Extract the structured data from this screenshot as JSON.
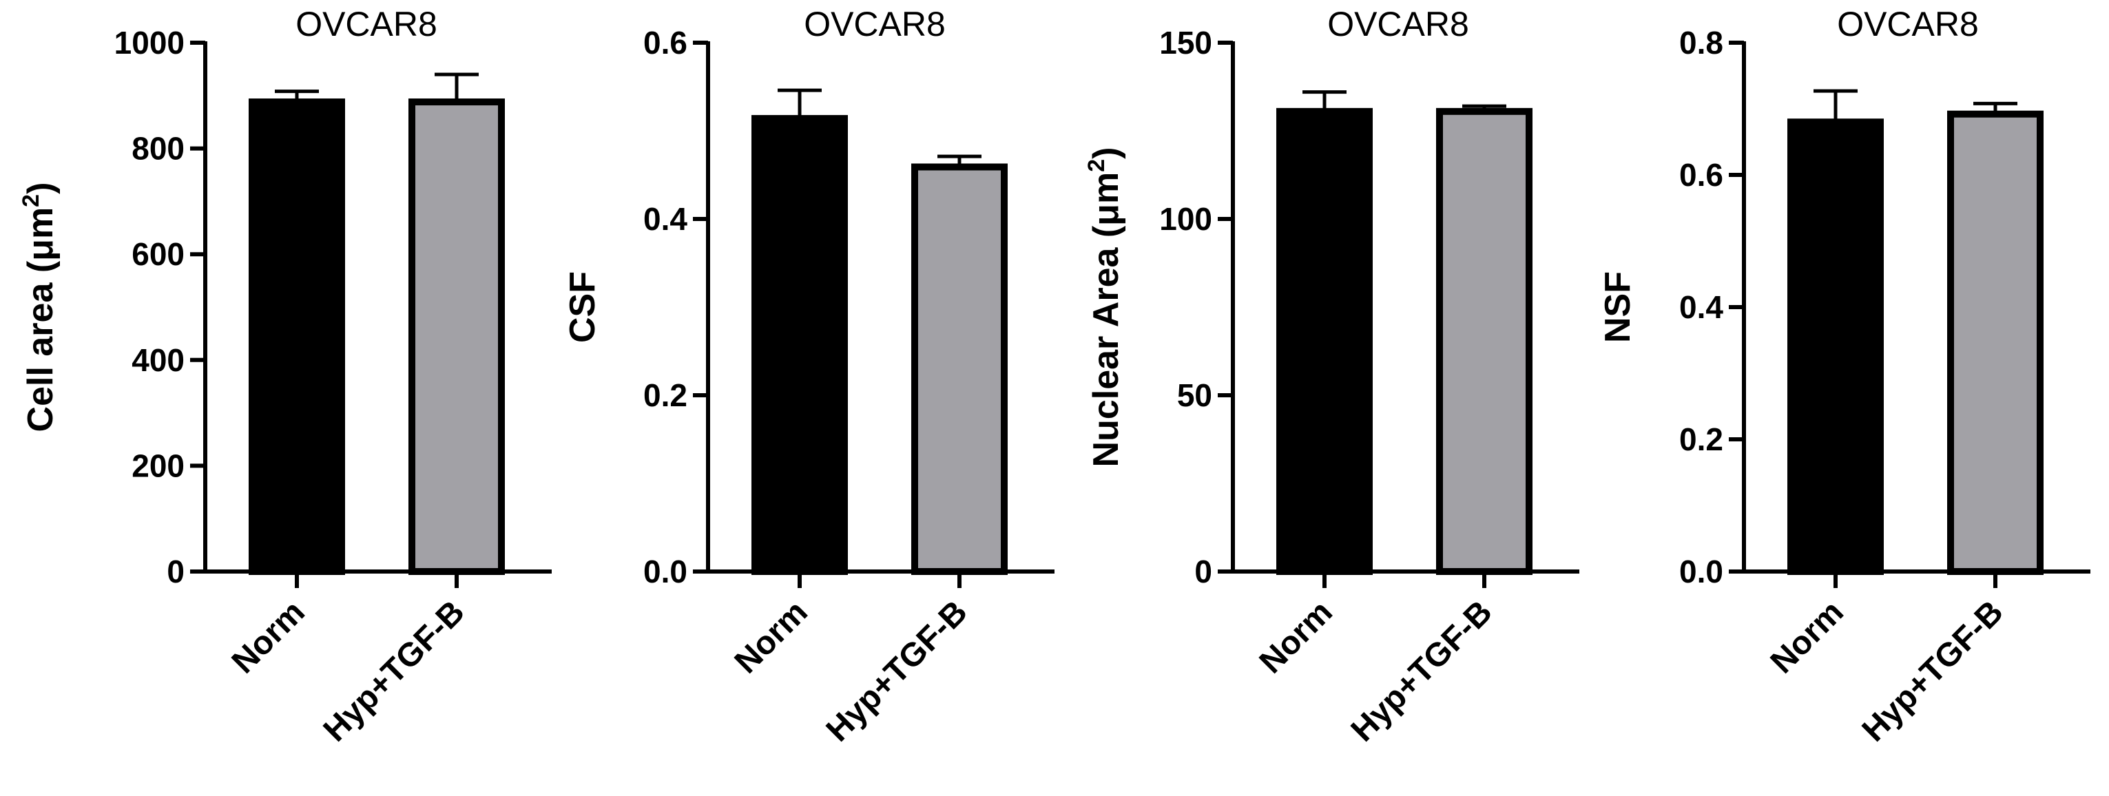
{
  "colors": {
    "norm": "#000000",
    "treated": "#a2a1a6",
    "axis": "#000000"
  },
  "chart_data": [
    {
      "type": "bar",
      "title": "OVCAR8",
      "ylabel": {
        "text": "Cell area (μm",
        "sup": "2",
        "close": ")"
      },
      "categories": [
        "Norm",
        "Hyp+TGF-B"
      ],
      "values": [
        888,
        888
      ],
      "errors": [
        20,
        52
      ],
      "ylim": [
        0,
        1000
      ],
      "yticks": [
        0,
        200,
        400,
        600,
        800,
        1000
      ],
      "yticklabels": [
        "0",
        "200",
        "400",
        "600",
        "800",
        "1000"
      ]
    },
    {
      "type": "bar",
      "title": "OVCAR8",
      "ylabel": {
        "text": "CSF",
        "sup": "",
        "close": ""
      },
      "categories": [
        "Norm",
        "Hyp+TGF-B"
      ],
      "values": [
        0.514,
        0.459
      ],
      "errors": [
        0.032,
        0.012
      ],
      "ylim": [
        0,
        0.6
      ],
      "yticks": [
        0,
        0.2,
        0.4,
        0.6
      ],
      "yticklabels": [
        "0.0",
        "0.2",
        "0.4",
        "0.6"
      ]
    },
    {
      "type": "bar",
      "title": "OVCAR8",
      "ylabel": {
        "text": "Nuclear Area (μm",
        "sup": "2",
        "close": ")"
      },
      "categories": [
        "Norm",
        "Hyp+TGF-B"
      ],
      "values": [
        130.5,
        130.5
      ],
      "errors": [
        5.5,
        1.5
      ],
      "ylim": [
        0,
        150
      ],
      "yticks": [
        0,
        50,
        100,
        150
      ],
      "yticklabels": [
        "0",
        "50",
        "100",
        "150"
      ]
    },
    {
      "type": "bar",
      "title": "OVCAR8",
      "ylabel": {
        "text": "NSF",
        "sup": "",
        "close": ""
      },
      "categories": [
        "Norm",
        "Hyp+TGF-B"
      ],
      "values": [
        0.68,
        0.692
      ],
      "errors": [
        0.047,
        0.016
      ],
      "ylim": [
        0,
        0.8
      ],
      "yticks": [
        0,
        0.2,
        0.4,
        0.6,
        0.8
      ],
      "yticklabels": [
        "0.0",
        "0.2",
        "0.4",
        "0.6",
        "0.8"
      ]
    }
  ]
}
